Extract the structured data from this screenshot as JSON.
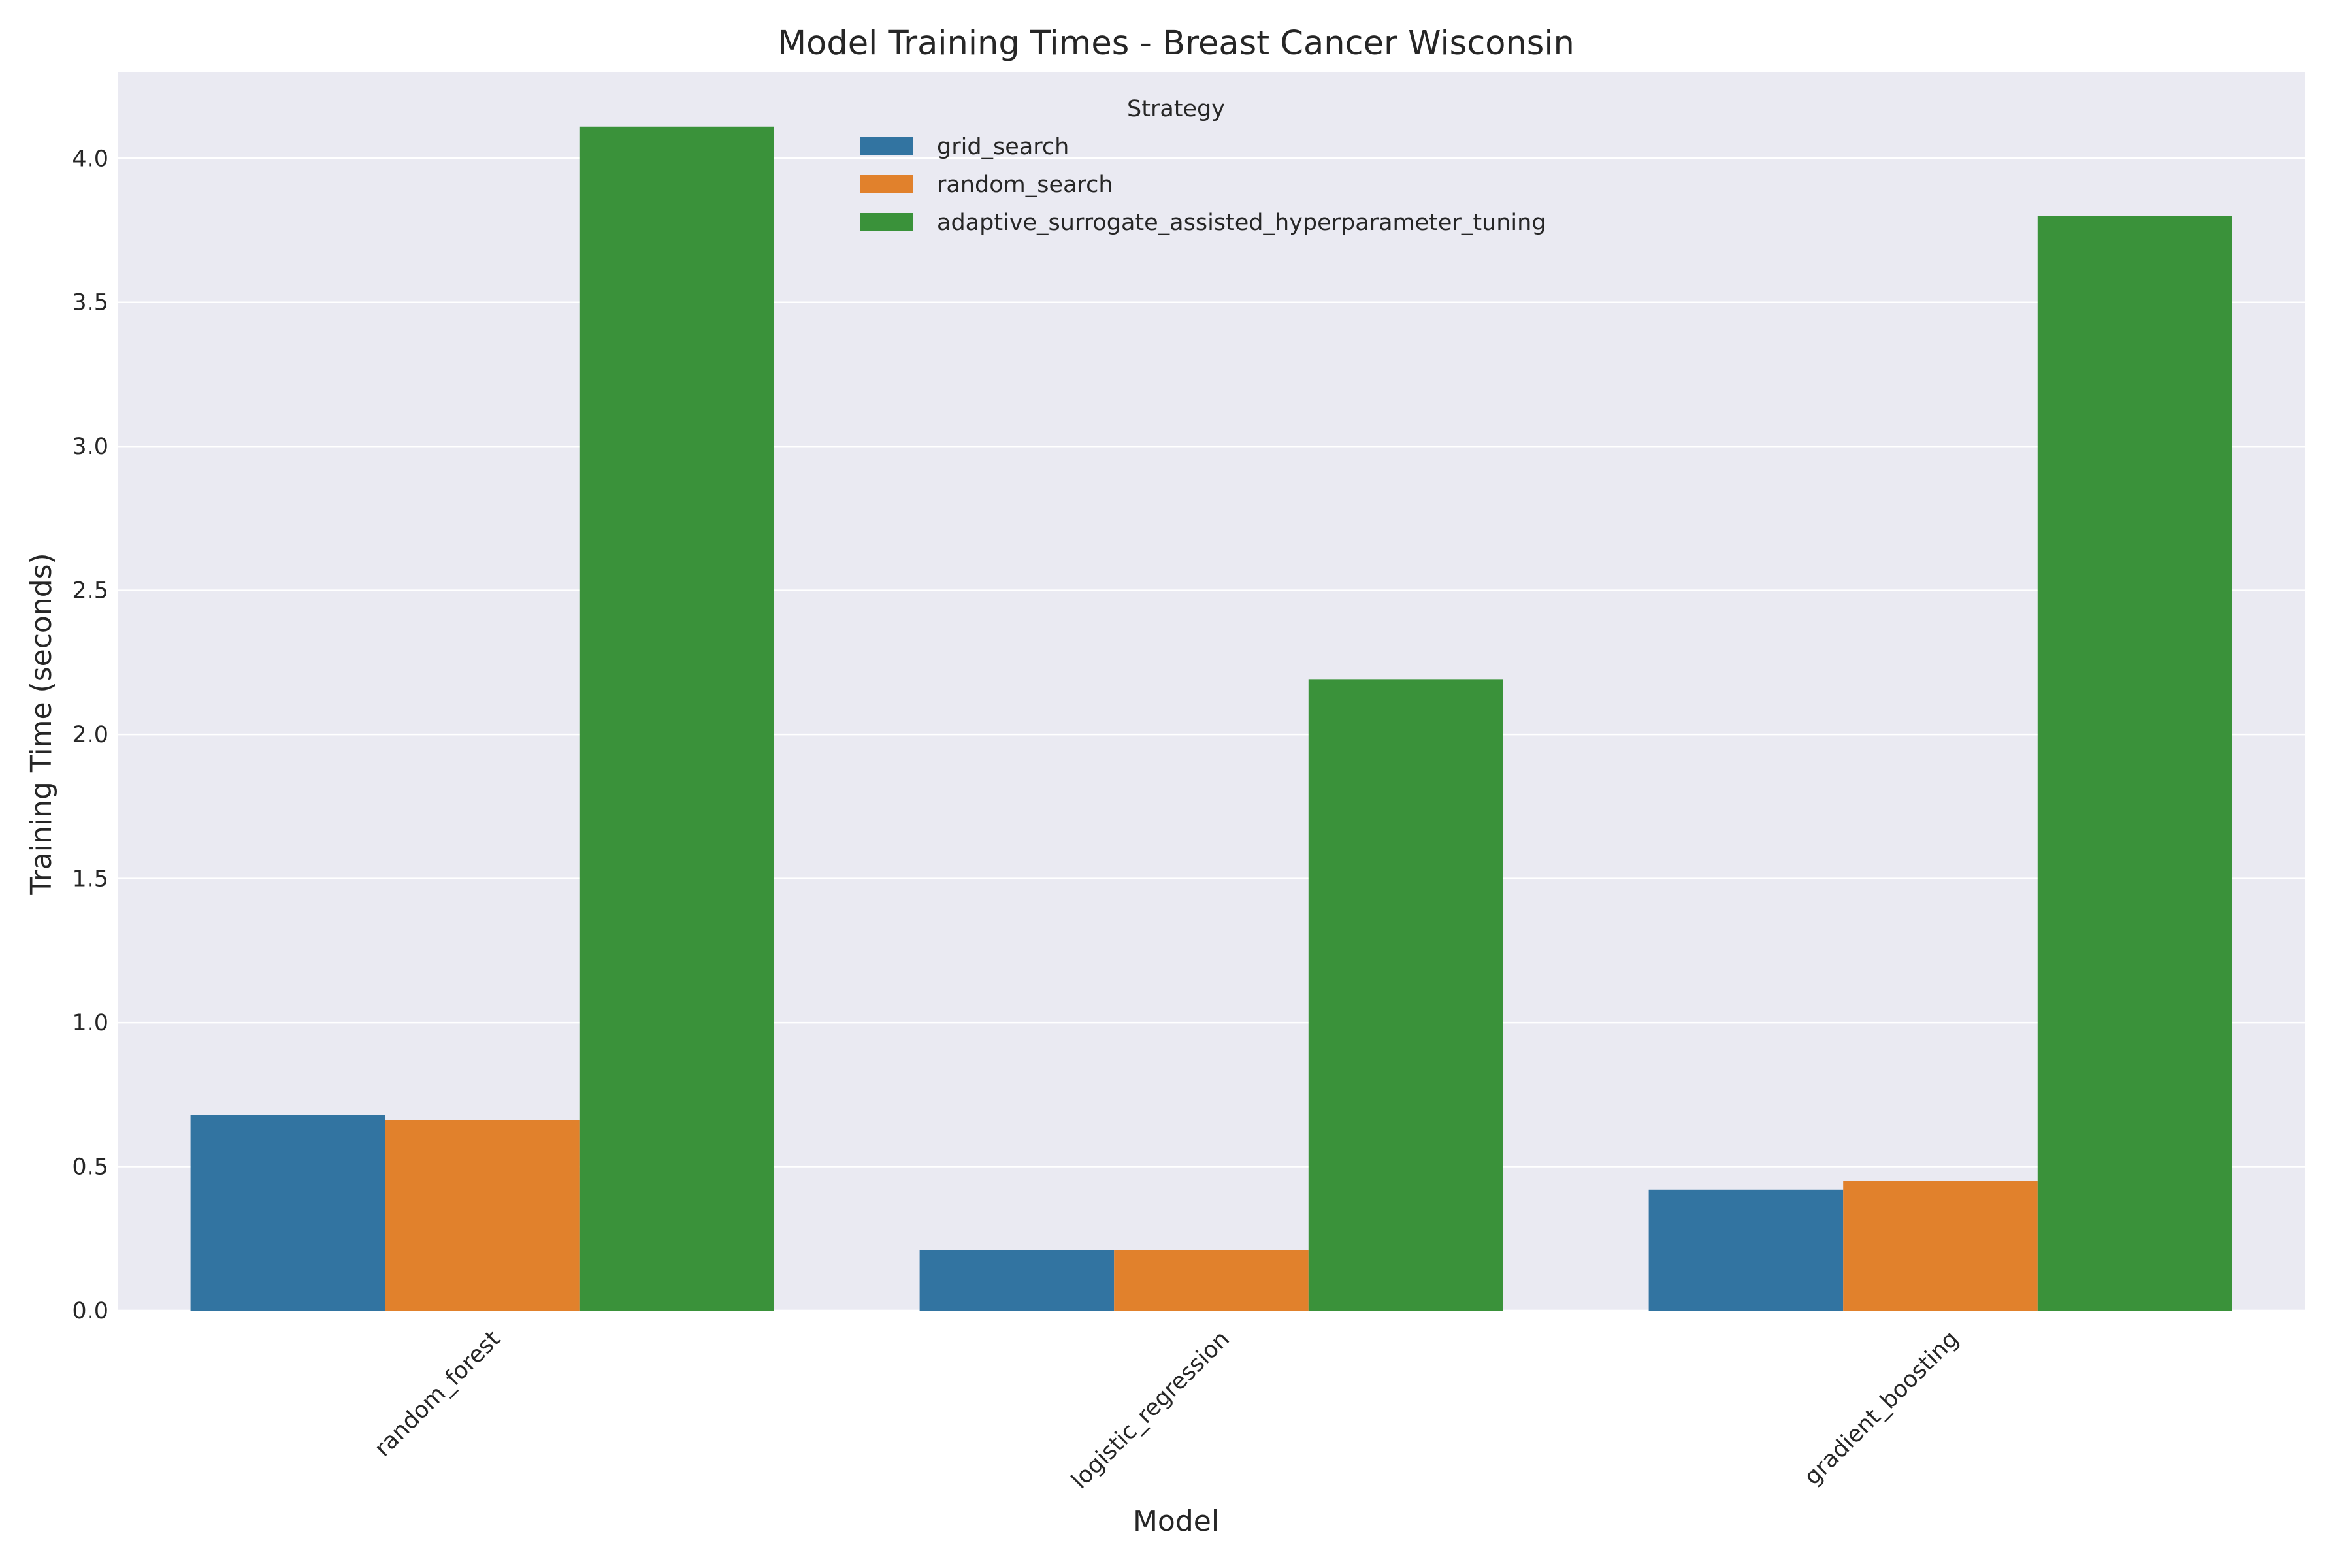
{
  "chart_data": {
    "type": "bar",
    "title": "Model Training Times - Breast Cancer Wisconsin",
    "xlabel": "Model",
    "ylabel": "Training Time (seconds)",
    "categories": [
      "random_forest",
      "logistic_regression",
      "gradient_boosting"
    ],
    "series": [
      {
        "name": "grid_search",
        "color": "#3274a1",
        "values": [
          0.68,
          0.21,
          0.42
        ]
      },
      {
        "name": "random_search",
        "color": "#e1812c",
        "values": [
          0.66,
          0.21,
          0.45
        ]
      },
      {
        "name": "adaptive_surrogate_assisted_hyperparameter_tuning",
        "color": "#3a923a",
        "values": [
          4.11,
          2.19,
          3.8
        ]
      }
    ],
    "ylim": [
      0,
      4.3
    ],
    "yticks": [
      0.0,
      0.5,
      1.0,
      1.5,
      2.0,
      2.5,
      3.0,
      3.5,
      4.0
    ],
    "ytick_labels": [
      "0.0",
      "0.5",
      "1.0",
      "1.5",
      "2.0",
      "2.5",
      "3.0",
      "3.5",
      "4.0"
    ],
    "grid": true,
    "grid_axis": "y",
    "legend": {
      "title": "Strategy",
      "placement": "top-center"
    },
    "colors": {
      "background": "#eaeaf2",
      "grid": "#ffffff",
      "text": "#262626"
    }
  }
}
